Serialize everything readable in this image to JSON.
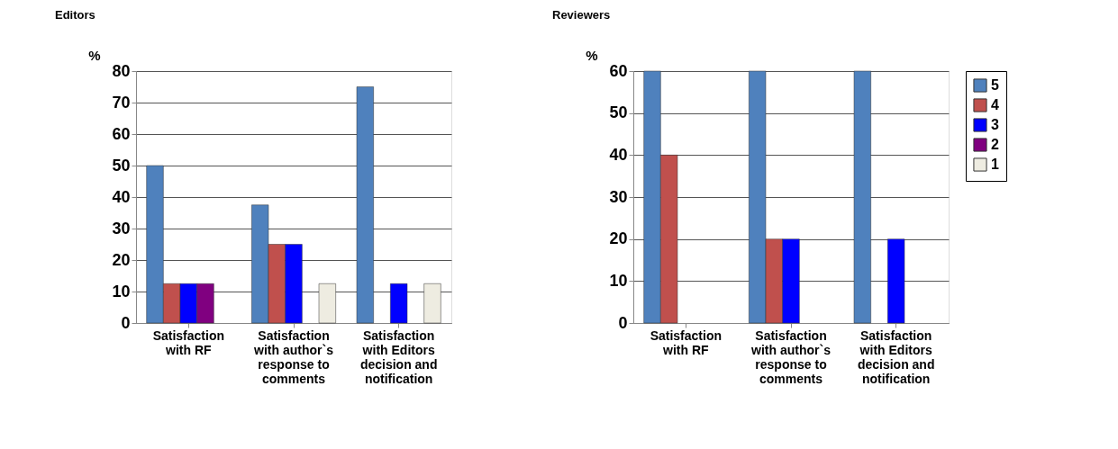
{
  "chart_data": [
    {
      "type": "bar",
      "title": "Editors",
      "ylabel": "%",
      "categories": [
        "Satisfaction with RF",
        "Satisfaction with author`s response to comments",
        "Satisfaction with Editors decision and notification"
      ],
      "ylim": [
        0,
        80
      ],
      "yticks": [
        0,
        10,
        20,
        30,
        40,
        50,
        60,
        70,
        80
      ],
      "grid": "y",
      "legend": "right",
      "series": [
        {
          "name": "5",
          "color": "#4f81bd",
          "values": [
            50,
            37.5,
            75
          ]
        },
        {
          "name": "4",
          "color": "#c0504d",
          "values": [
            12.5,
            25,
            null
          ]
        },
        {
          "name": "3",
          "color": "#0000ff",
          "values": [
            12.5,
            25,
            12.5
          ]
        },
        {
          "name": "2",
          "color": "#800080",
          "values": [
            12.5,
            null,
            null
          ]
        },
        {
          "name": "1",
          "color": "#eeece1",
          "values": [
            null,
            12.5,
            12.5
          ]
        }
      ]
    },
    {
      "type": "bar",
      "title": "Reviewers",
      "ylabel": "%",
      "categories": [
        "Satisfaction with RF",
        "Satisfaction with author`s response to comments",
        "Satisfaction with Editors decision and notification"
      ],
      "ylim": [
        0,
        60
      ],
      "yticks": [
        0,
        10,
        20,
        30,
        40,
        50,
        60
      ],
      "grid": "y",
      "legend": "right",
      "series": [
        {
          "name": "5",
          "color": "#4f81bd",
          "values": [
            60,
            60,
            60
          ]
        },
        {
          "name": "4",
          "color": "#c0504d",
          "values": [
            40,
            20,
            null
          ]
        },
        {
          "name": "3",
          "color": "#0000ff",
          "values": [
            null,
            20,
            20
          ]
        },
        {
          "name": "2",
          "color": "#800080",
          "values": [
            null,
            null,
            null
          ]
        },
        {
          "name": "1",
          "color": "#eeece1",
          "values": [
            null,
            null,
            null
          ]
        }
      ]
    }
  ]
}
